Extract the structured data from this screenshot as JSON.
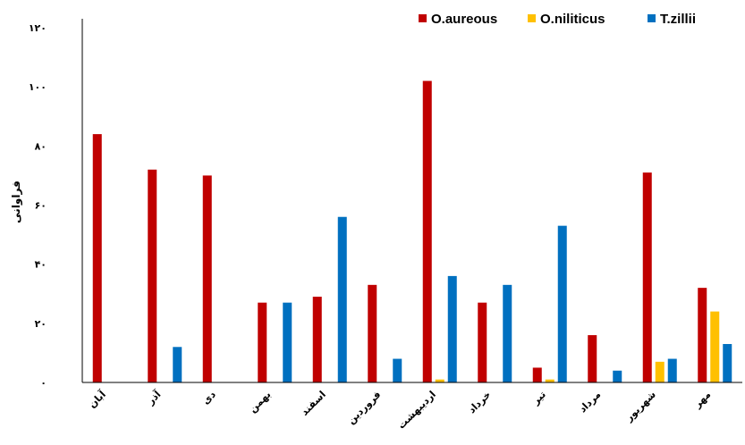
{
  "chart_data": {
    "type": "bar",
    "ylabel": "فراوانی",
    "ylim": [
      0,
      120
    ],
    "yticks": [
      {
        "value": 0,
        "label": "۰"
      },
      {
        "value": 20,
        "label": "۲۰"
      },
      {
        "value": 40,
        "label": "۴۰"
      },
      {
        "value": 60,
        "label": "۶۰"
      },
      {
        "value": 80,
        "label": "۸۰"
      },
      {
        "value": 100,
        "label": "۱۰۰"
      },
      {
        "value": 120,
        "label": "۱۲۰"
      }
    ],
    "categories": [
      "آبان",
      "آذر",
      "دی",
      "بهمن",
      "اسفند",
      "فروردین",
      "اردیبهشت",
      "خرداد",
      "تیر",
      "مرداد",
      "شهریور",
      "مهر"
    ],
    "series": [
      {
        "name": "O.aureous",
        "color": "#c00000",
        "values": [
          84,
          72,
          70,
          27,
          29,
          33,
          102,
          27,
          5,
          16,
          71,
          32
        ]
      },
      {
        "name": "O.niliticus",
        "color": "#ffc000",
        "values": [
          0,
          0,
          0,
          0,
          0,
          0,
          1,
          0,
          1,
          0,
          7,
          24
        ]
      },
      {
        "name": "T.zillii",
        "color": "#0070c0",
        "values": [
          0,
          12,
          0,
          27,
          56,
          8,
          36,
          33,
          53,
          4,
          8,
          13
        ]
      }
    ],
    "legend_position": "top-right",
    "grid": false
  }
}
